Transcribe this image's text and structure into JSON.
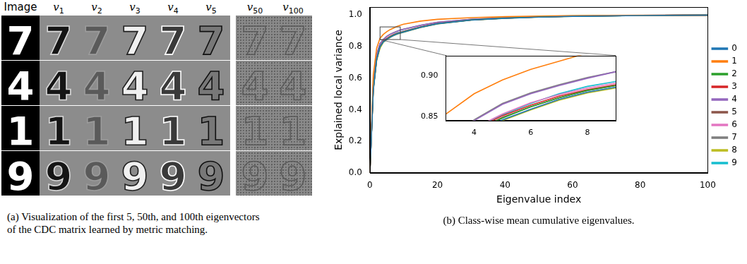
{
  "figure_a": {
    "columns": [
      {
        "text": "Image"
      },
      {
        "symbol": "v",
        "index": "1"
      },
      {
        "symbol": "v",
        "index": "2"
      },
      {
        "symbol": "v",
        "index": "3"
      },
      {
        "symbol": "v",
        "index": "4"
      },
      {
        "symbol": "v",
        "index": "5"
      },
      {
        "symbol": "v",
        "index": "50"
      },
      {
        "symbol": "v",
        "index": "100"
      }
    ],
    "rows": [
      "7",
      "4",
      "1",
      "9"
    ],
    "caption": [
      "(a) Visualization of the first 5, 50th, and 100th eigenvectors",
      "of the CDC matrix learned by metric matching."
    ]
  },
  "chart_data": {
    "type": "line",
    "caption": "(b) Class-wise mean cumulative eigenvalues.",
    "x_label": "Eigenvalue index",
    "y_label": "Explained local variance",
    "x": [
      0,
      1,
      2,
      3,
      4,
      5,
      6,
      7,
      8,
      9,
      10,
      15,
      20,
      30,
      40,
      50,
      60,
      80,
      100
    ],
    "xlim": [
      0,
      100
    ],
    "xticks": [
      0,
      20,
      40,
      60,
      80,
      100
    ],
    "ylim": [
      0,
      1.05
    ],
    "yticks": [
      {
        "value": 0,
        "label": "0.0"
      },
      {
        "value": 0.2,
        "label": "0.2"
      },
      {
        "value": 0.4,
        "label": "0.4"
      },
      {
        "value": 0.6,
        "label": "0.6"
      },
      {
        "value": 0.8,
        "label": "0.8"
      },
      {
        "value": 1,
        "label": "1.0"
      }
    ],
    "grid": false,
    "legend": "right",
    "series": [
      {
        "name": "0",
        "color": "#1f77b4",
        "values": [
          0,
          0.52,
          0.72,
          0.8,
          0.83,
          0.846,
          0.859,
          0.871,
          0.88,
          0.886,
          0.892,
          0.922,
          0.945,
          0.968,
          0.98,
          0.987,
          0.992,
          0.997,
          1.0
        ]
      },
      {
        "name": "1",
        "color": "#ff7f0e",
        "values": [
          0,
          0.62,
          0.79,
          0.853,
          0.878,
          0.895,
          0.908,
          0.918,
          0.928,
          0.936,
          0.942,
          0.962,
          0.973,
          0.984,
          0.99,
          0.994,
          0.997,
          0.999,
          1.0
        ]
      },
      {
        "name": "2",
        "color": "#2ca02c",
        "values": [
          0,
          0.53,
          0.72,
          0.8,
          0.832,
          0.848,
          0.862,
          0.873,
          0.882,
          0.888,
          0.894,
          0.923,
          0.946,
          0.969,
          0.981,
          0.988,
          0.993,
          0.997,
          1.0
        ]
      },
      {
        "name": "3",
        "color": "#d62728",
        "values": [
          0,
          0.53,
          0.72,
          0.8,
          0.834,
          0.851,
          0.864,
          0.875,
          0.883,
          0.889,
          0.895,
          0.924,
          0.947,
          0.969,
          0.981,
          0.988,
          0.993,
          0.997,
          1.0
        ]
      },
      {
        "name": "4",
        "color": "#9467bd",
        "values": [
          0,
          0.56,
          0.75,
          0.82,
          0.845,
          0.865,
          0.878,
          0.888,
          0.897,
          0.905,
          0.91,
          0.935,
          0.955,
          0.974,
          0.984,
          0.99,
          0.994,
          0.998,
          1.0
        ]
      },
      {
        "name": "5",
        "color": "#8c564b",
        "values": [
          0,
          0.53,
          0.72,
          0.8,
          0.832,
          0.849,
          0.862,
          0.873,
          0.882,
          0.888,
          0.894,
          0.923,
          0.946,
          0.969,
          0.981,
          0.988,
          0.993,
          0.997,
          1.0
        ]
      },
      {
        "name": "6",
        "color": "#e377c2",
        "values": [
          0,
          0.54,
          0.73,
          0.81,
          0.836,
          0.853,
          0.867,
          0.877,
          0.885,
          0.891,
          0.897,
          0.925,
          0.948,
          0.97,
          0.982,
          0.988,
          0.993,
          0.997,
          1.0
        ]
      },
      {
        "name": "7",
        "color": "#7f7f7f",
        "values": [
          0,
          0.56,
          0.75,
          0.82,
          0.846,
          0.866,
          0.879,
          0.889,
          0.898,
          0.905,
          0.911,
          0.936,
          0.955,
          0.974,
          0.984,
          0.99,
          0.994,
          0.998,
          1.0
        ]
      },
      {
        "name": "8",
        "color": "#bcbd22",
        "values": [
          0,
          0.52,
          0.71,
          0.79,
          0.828,
          0.845,
          0.858,
          0.87,
          0.879,
          0.885,
          0.891,
          0.921,
          0.944,
          0.968,
          0.98,
          0.987,
          0.992,
          0.997,
          1.0
        ]
      },
      {
        "name": "9",
        "color": "#17becf",
        "values": [
          0,
          0.54,
          0.73,
          0.81,
          0.836,
          0.852,
          0.866,
          0.878,
          0.887,
          0.893,
          0.899,
          0.926,
          0.948,
          0.97,
          0.982,
          0.988,
          0.993,
          0.997,
          1.0
        ]
      }
    ],
    "inset": {
      "xlim": [
        3,
        9
      ],
      "ylim": [
        0.845,
        0.925
      ],
      "xticks": [
        4,
        6,
        8
      ],
      "yticks": [
        {
          "value": 0.85,
          "label": "0.85"
        },
        {
          "value": 0.9,
          "label": "0.90"
        }
      ]
    }
  }
}
